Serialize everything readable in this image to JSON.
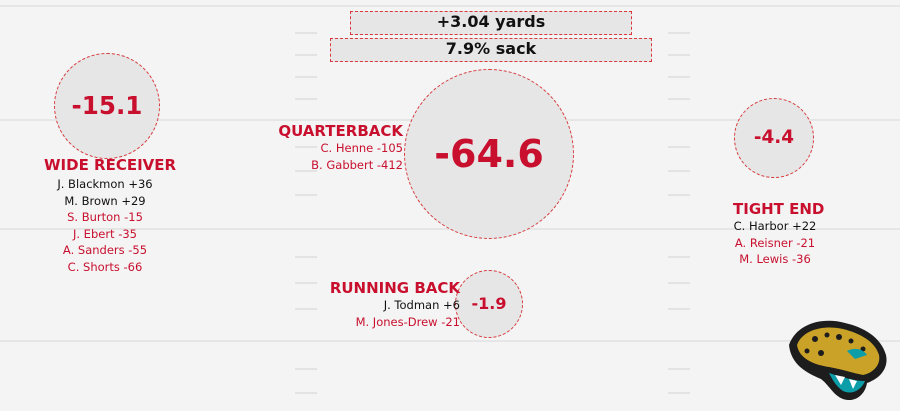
{
  "chart_data": {
    "type": "table",
    "summary": {
      "yards": "+3.04 yards",
      "sack": "7.9% sack"
    },
    "positions": [
      {
        "key": "wr",
        "name": "WIDE RECEIVER",
        "total": -15.1,
        "players": [
          {
            "label": "J. Blackmon +36",
            "value": 36
          },
          {
            "label": "M. Brown +29",
            "value": 29
          },
          {
            "label": "S. Burton -15",
            "value": -15
          },
          {
            "label": "J. Ebert -35",
            "value": -35
          },
          {
            "label": "A. Sanders -55",
            "value": -55
          },
          {
            "label": "C. Shorts -66",
            "value": -66
          }
        ]
      },
      {
        "key": "qb",
        "name": "QUARTERBACK",
        "total": -64.6,
        "players": [
          {
            "label": "C. Henne -105",
            "value": -105
          },
          {
            "label": "B. Gabbert -412",
            "value": -412
          }
        ]
      },
      {
        "key": "te",
        "name": "TIGHT END",
        "total": -4.4,
        "players": [
          {
            "label": "C. Harbor +22",
            "value": 22
          },
          {
            "label": "A. Reisner -21",
            "value": -21
          },
          {
            "label": "M. Lewis -36",
            "value": -36
          }
        ]
      },
      {
        "key": "rb",
        "name": "RUNNING BACK",
        "total": -1.9,
        "players": [
          {
            "label": "J. Todman +6",
            "value": 6
          },
          {
            "label": "M. Jones-Drew -21",
            "value": -21
          }
        ]
      }
    ]
  },
  "colors": {
    "positive": "#111111",
    "negative": "#c8102e",
    "accent": "#d8383b"
  },
  "logo": {
    "icon": "jaguar-head-icon"
  }
}
